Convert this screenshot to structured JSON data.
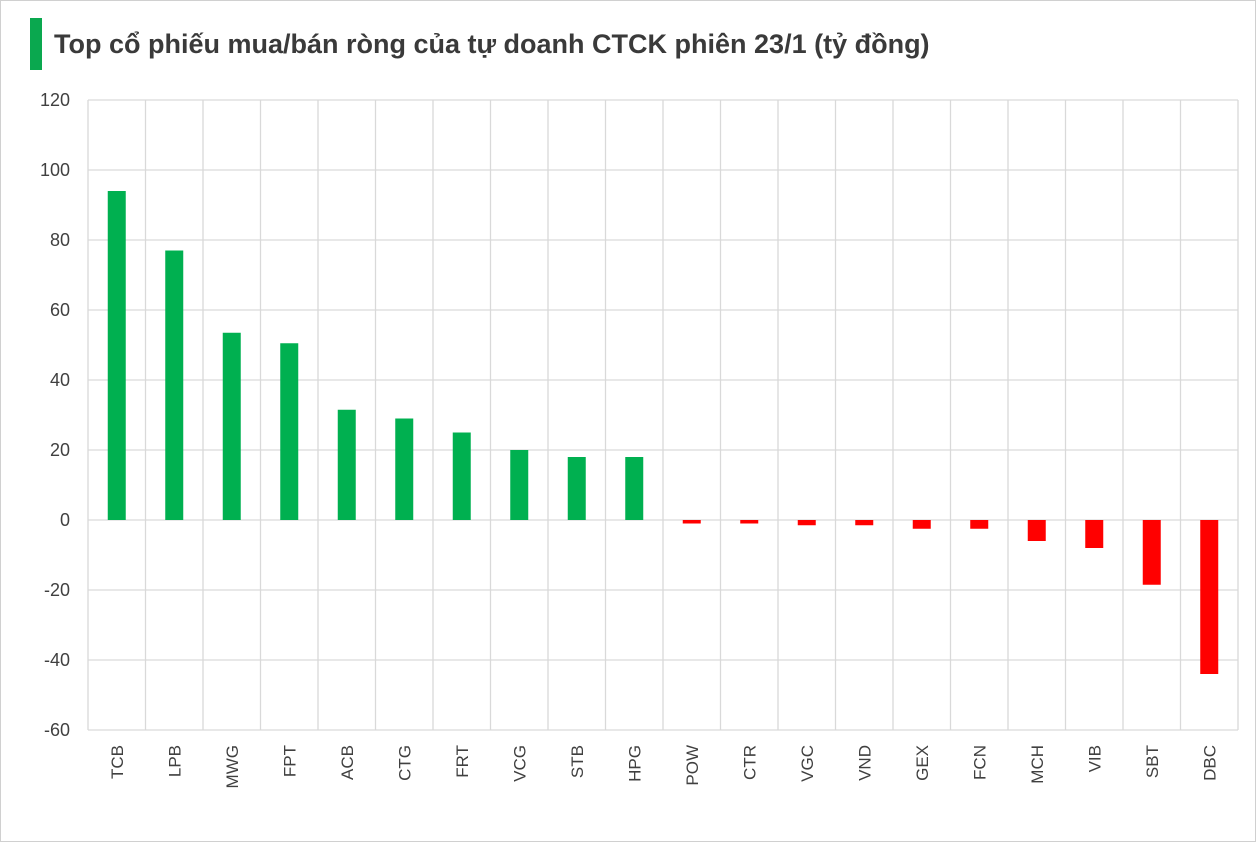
{
  "chart_data": {
    "type": "bar",
    "title": "Top cổ phiếu mua/bán ròng của tự doanh CTCK phiên 23/1 (tỷ đồng)",
    "categories": [
      "TCB",
      "LPB",
      "MWG",
      "FPT",
      "ACB",
      "CTG",
      "FRT",
      "VCG",
      "STB",
      "HPG",
      "POW",
      "CTR",
      "VGC",
      "VND",
      "GEX",
      "FCN",
      "MCH",
      "VIB",
      "SBT",
      "DBC"
    ],
    "values": [
      94,
      77,
      53.5,
      50.5,
      31.5,
      29,
      25,
      20,
      18,
      18,
      -1,
      -1,
      -1.5,
      -1.5,
      -2.5,
      -2.5,
      -6,
      -8,
      -18.5,
      -44
    ],
    "ylim": [
      -60,
      120
    ],
    "yticks": [
      "120",
      "100",
      "80",
      "60",
      "40",
      "20",
      "0",
      "-20",
      "-40",
      "-60"
    ],
    "grid": true,
    "colors": {
      "positive": "#00b050",
      "negative": "#ff0000",
      "grid": "#d9d9d9",
      "accent": "#0aa84f"
    }
  }
}
